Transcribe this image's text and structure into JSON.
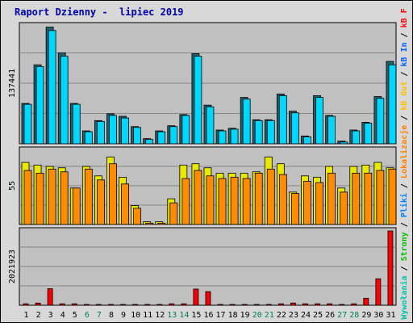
{
  "title": "Raport Dzienny -  lipiec 2019",
  "colors": {
    "panel_bg": "#c0c0c0",
    "grid": "#888888",
    "hits_back": "#1a6470",
    "hits_front": "#00d7ff",
    "lokal_back": "#e8e800",
    "lokal_front": "#ff8c00",
    "kbf_back": "#7a0000",
    "kbf_front": "#ff0000",
    "weekday_label": "#000000",
    "weekend_label": "#008050"
  },
  "chart_data": [
    {
      "type": "bar",
      "name": "top-panel",
      "max_label": "137441",
      "ylim": [
        0,
        137441
      ],
      "x": [
        "1",
        "2",
        "3",
        "4",
        "5",
        "6",
        "7",
        "8",
        "9",
        "10",
        "11",
        "12",
        "13",
        "14",
        "15",
        "16",
        "17",
        "18",
        "19",
        "20",
        "21",
        "22",
        "23",
        "24",
        "25",
        "26",
        "27",
        "28",
        "29",
        "30",
        "31"
      ],
      "series": [
        {
          "name": "Wywołania",
          "values": [
            47000,
            92000,
            136000,
            106000,
            47000,
            15000,
            27000,
            35000,
            32000,
            20000,
            6000,
            15000,
            21000,
            34000,
            105000,
            45000,
            16000,
            18000,
            54000,
            28000,
            28000,
            58000,
            38000,
            9000,
            56000,
            33000,
            3000,
            16000,
            25000,
            55000,
            96000
          ]
        },
        {
          "name": "Strony",
          "values": [
            46000,
            90000,
            132000,
            102000,
            46000,
            14000,
            26000,
            33000,
            30000,
            19000,
            5000,
            14000,
            20000,
            33000,
            102000,
            43000,
            15000,
            17000,
            52000,
            27000,
            27000,
            56000,
            36000,
            8000,
            54000,
            32000,
            2000,
            15000,
            24000,
            53000,
            92000
          ]
        }
      ]
    },
    {
      "type": "bar",
      "name": "middle-panel",
      "max_label": "55",
      "ylim": [
        0,
        55
      ],
      "x": [
        "1",
        "2",
        "3",
        "4",
        "5",
        "6",
        "7",
        "8",
        "9",
        "10",
        "11",
        "12",
        "13",
        "14",
        "15",
        "16",
        "17",
        "18",
        "19",
        "20",
        "21",
        "22",
        "23",
        "24",
        "25",
        "26",
        "27",
        "28",
        "29",
        "30",
        "31"
      ],
      "series": [
        {
          "name": "Pliki",
          "values": [
            46,
            44,
            43,
            42,
            27,
            43,
            36,
            50,
            35,
            14,
            2,
            2,
            19,
            44,
            45,
            42,
            38,
            38,
            38,
            39,
            50,
            45,
            24,
            36,
            35,
            43,
            27,
            43,
            44,
            46,
            42
          ]
        },
        {
          "name": "Lokalizacje",
          "values": [
            40,
            38,
            41,
            39,
            27,
            41,
            33,
            45,
            30,
            12,
            1,
            1,
            16,
            34,
            40,
            36,
            34,
            35,
            34,
            38,
            41,
            37,
            23,
            32,
            31,
            38,
            24,
            38,
            38,
            40,
            41
          ]
        }
      ]
    },
    {
      "type": "bar",
      "name": "bottom-panel",
      "max_label": "2021923",
      "ylim": [
        0,
        2021923
      ],
      "x": [
        "1",
        "2",
        "3",
        "4",
        "5",
        "6",
        "7",
        "8",
        "9",
        "10",
        "11",
        "12",
        "13",
        "14",
        "15",
        "16",
        "17",
        "18",
        "19",
        "20",
        "21",
        "22",
        "23",
        "24",
        "25",
        "26",
        "27",
        "28",
        "29",
        "30",
        "31"
      ],
      "series": [
        {
          "name": "KB F",
          "values": [
            40000,
            60000,
            450000,
            40000,
            40000,
            20000,
            20000,
            20000,
            20000,
            20000,
            20000,
            20000,
            40000,
            40000,
            440000,
            370000,
            20000,
            20000,
            20000,
            20000,
            20000,
            40000,
            60000,
            40000,
            40000,
            40000,
            20000,
            40000,
            190000,
            720000,
            2021923
          ]
        }
      ]
    }
  ],
  "right_labels": [
    {
      "text": "Wywołania",
      "color": "#00c4a8"
    },
    {
      "text": " / ",
      "color": "#000000"
    },
    {
      "text": "Strony",
      "color": "#00c000"
    },
    {
      "text": " / ",
      "color": "#000000"
    },
    {
      "text": "Pliki",
      "color": "#0080ff"
    },
    {
      "text": " / ",
      "color": "#000000"
    },
    {
      "text": "Lokalizacje",
      "color": "#ff8000"
    },
    {
      "text": " / ",
      "color": "#000000"
    },
    {
      "text": "kB Out",
      "color": "#ffc000"
    },
    {
      "text": " / ",
      "color": "#000000"
    },
    {
      "text": "kB In",
      "color": "#0060ff"
    },
    {
      "text": " / ",
      "color": "#000000"
    },
    {
      "text": "kB F",
      "color": "#ff0000"
    }
  ],
  "weekend_days": [
    "6",
    "7",
    "13",
    "14",
    "20",
    "21",
    "27",
    "28"
  ]
}
